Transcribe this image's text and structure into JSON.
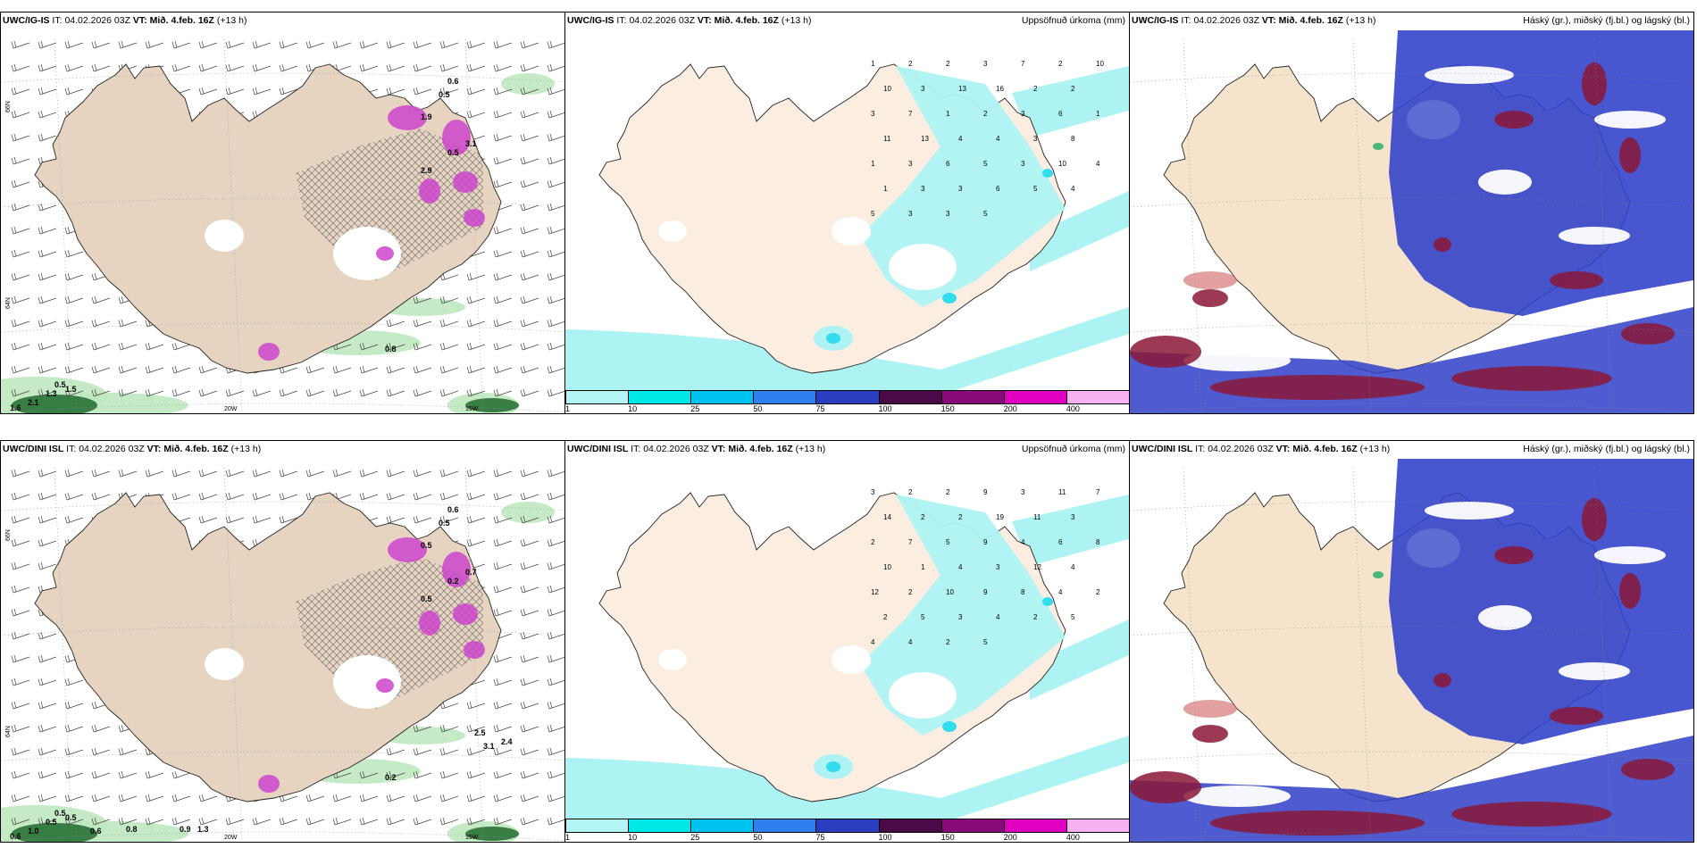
{
  "panels": [
    {
      "model": "UWC/IG-IS",
      "it_label": "IT:",
      "it": "04.02.2026 03Z",
      "vt_label": "VT:",
      "vt": "Mið. 4.feb. 16Z",
      "lead": "(+13 h)",
      "right": ""
    },
    {
      "model": "UWC/IG-IS",
      "it_label": "IT:",
      "it": "04.02.2026 03Z",
      "vt_label": "VT:",
      "vt": "Mið. 4.feb. 16Z",
      "lead": "(+13 h)",
      "right": "Uppsöfnuð úrkoma (mm)"
    },
    {
      "model": "UWC/IG-IS",
      "it_label": "IT:",
      "it": "04.02.2026 03Z",
      "vt_label": "VT:",
      "vt": "Mið. 4.feb. 16Z",
      "lead": "(+13 h)",
      "right": "Háský (gr.), miðský (fj.bl.) og lágský (bl.)"
    },
    {
      "model": "UWC/DINI ISL",
      "it_label": "IT:",
      "it": "04.02.2026 03Z",
      "vt_label": "VT:",
      "vt": "Mið. 4.feb. 16Z",
      "lead": "(+13 h)",
      "right": ""
    },
    {
      "model": "UWC/DINI ISL",
      "it_label": "IT:",
      "it": "04.02.2026 03Z",
      "vt_label": "VT:",
      "vt": "Mið. 4.feb. 16Z",
      "lead": "(+13 h)",
      "right": "Uppsöfnuð úrkoma (mm)"
    },
    {
      "model": "UWC/DINI ISL",
      "it_label": "IT:",
      "it": "04.02.2026 03Z",
      "vt_label": "VT:",
      "vt": "Mið. 4.feb. 16Z",
      "lead": "(+13 h)",
      "right": "Háský (gr.), miðský (fj.bl.) og lágský (bl.)"
    }
  ],
  "axis_labels": {
    "lat_66": "66N",
    "lat_64": "64N",
    "lon_20": "20W",
    "lon_15": "15W"
  },
  "colorbar": {
    "ticks": [
      "1",
      "10",
      "25",
      "50",
      "75",
      "100",
      "150",
      "200",
      "400"
    ],
    "colors": [
      "#b3f5f5",
      "#00e8e8",
      "#00c2f0",
      "#2e7ff0",
      "#2a3fc0",
      "#4a0a4a",
      "#8a0a7a",
      "#e000c0",
      "#f7b0f0"
    ]
  },
  "colors": {
    "land": "#f5e3cc",
    "land_top": "#e6d4c0",
    "precip_light": "#aef3f3",
    "precip_cyan": "#33dcec",
    "cloud_high": "#7a5ab0",
    "cloud_mid": "#2f3fc8",
    "cloud_low": "#8b1636",
    "green_light": "#bfe8c0",
    "green_dark": "#1e6b2e",
    "magenta": "#cc44cc"
  },
  "top_left_labels": [
    "0.5",
    "2.1",
    "1.3",
    "1.5",
    "1.6",
    "0.6",
    "0.5",
    "1.9",
    "0.8",
    "3.1",
    "0.5",
    "2.9"
  ],
  "bottom_left_labels": [
    "0.5",
    "1.0",
    "0.5",
    "0.5",
    "0.6",
    "0.6",
    "0.5",
    "0.5",
    "0.2",
    "0.7",
    "0.2",
    "0.5",
    "0.6",
    "0.8",
    "0.9",
    "1.3",
    "2.5",
    "3.1",
    "2.4"
  ],
  "top_mid_labels": [
    "1",
    "2",
    "2",
    "3",
    "7",
    "2",
    "10",
    "10",
    "3",
    "13",
    "16",
    "2",
    "2",
    "3",
    "7",
    "1",
    "2",
    "3",
    "6",
    "1",
    "11",
    "13",
    "4",
    "4",
    "3",
    "8",
    "1",
    "3",
    "6",
    "5",
    "3",
    "10",
    "4",
    "1",
    "3",
    "3",
    "6",
    "5",
    "4",
    "5",
    "3",
    "3",
    "5"
  ],
  "bottom_mid_labels": [
    "3",
    "2",
    "2",
    "9",
    "3",
    "11",
    "7",
    "14",
    "2",
    "2",
    "19",
    "11",
    "3",
    "2",
    "7",
    "5",
    "9",
    "4",
    "6",
    "8",
    "10",
    "1",
    "4",
    "3",
    "12",
    "4",
    "12",
    "2",
    "10",
    "9",
    "8",
    "4",
    "2",
    "2",
    "5",
    "3",
    "4",
    "2",
    "5",
    "4",
    "4",
    "2",
    "5"
  ]
}
